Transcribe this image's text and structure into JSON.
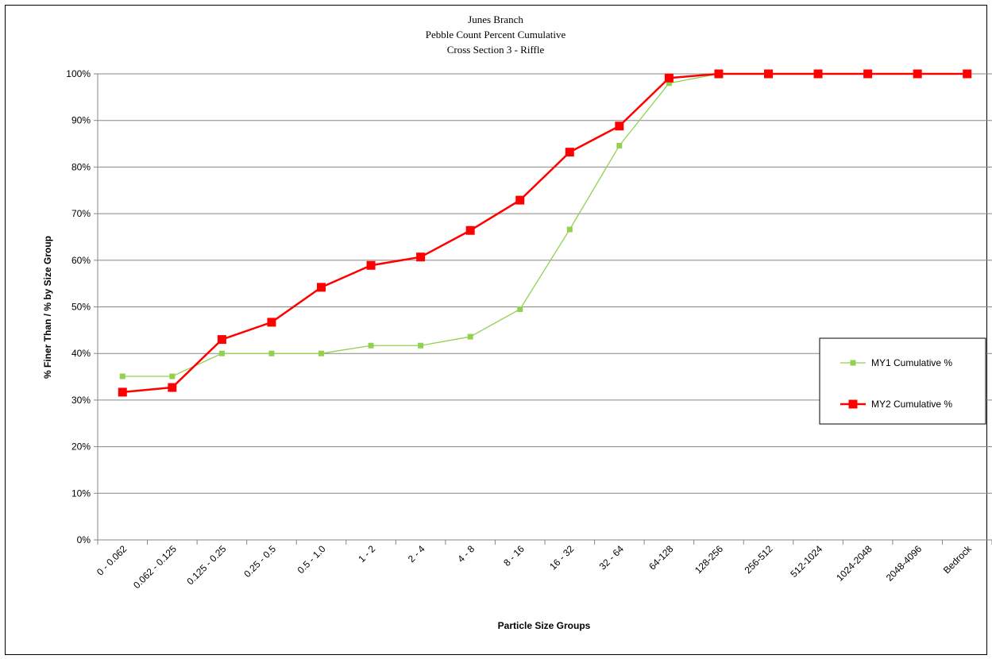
{
  "chart_data": {
    "type": "line",
    "title_lines": [
      "Junes Branch",
      "Pebble Count Percent Cumulative",
      "Cross Section 3 - Riffle"
    ],
    "xlabel": "Particle Size Groups",
    "ylabel": "% Finer Than / % by Size Group",
    "categories": [
      "0 - 0.062",
      "0.062 - 0.125",
      "0.125 - 0.25",
      "0.25 - 0.5",
      "0.5 - 1.0",
      "1 - 2",
      "2 - 4",
      "4 - 8",
      "8 - 16",
      "16 - 32",
      "32 - 64",
      "64-128",
      "128-256",
      "256-512",
      "512-1024",
      "1024-2048",
      "2048-4096",
      "Bedrock"
    ],
    "ylim": [
      0,
      100
    ],
    "yticks": [
      0,
      10,
      20,
      30,
      40,
      50,
      60,
      70,
      80,
      90,
      100
    ],
    "ytick_labels": [
      "0%",
      "10%",
      "20%",
      "30%",
      "40%",
      "50%",
      "60%",
      "70%",
      "80%",
      "90%",
      "100%"
    ],
    "grid": true,
    "legend_position": "right",
    "series": [
      {
        "name": "MY1 Cumulative %",
        "color": "#92d050",
        "values": [
          35.1,
          35.1,
          40,
          40,
          40,
          41.7,
          41.7,
          43.6,
          49.5,
          66.6,
          84.6,
          98,
          100,
          100,
          100,
          100,
          100,
          100
        ]
      },
      {
        "name": "MY2 Cumulative %",
        "color": "#ff0000",
        "values": [
          31.7,
          32.7,
          43,
          46.7,
          54.2,
          58.9,
          60.7,
          66.4,
          72.9,
          83.2,
          88.8,
          99.1,
          100,
          100,
          100,
          100,
          100,
          100
        ]
      }
    ]
  }
}
